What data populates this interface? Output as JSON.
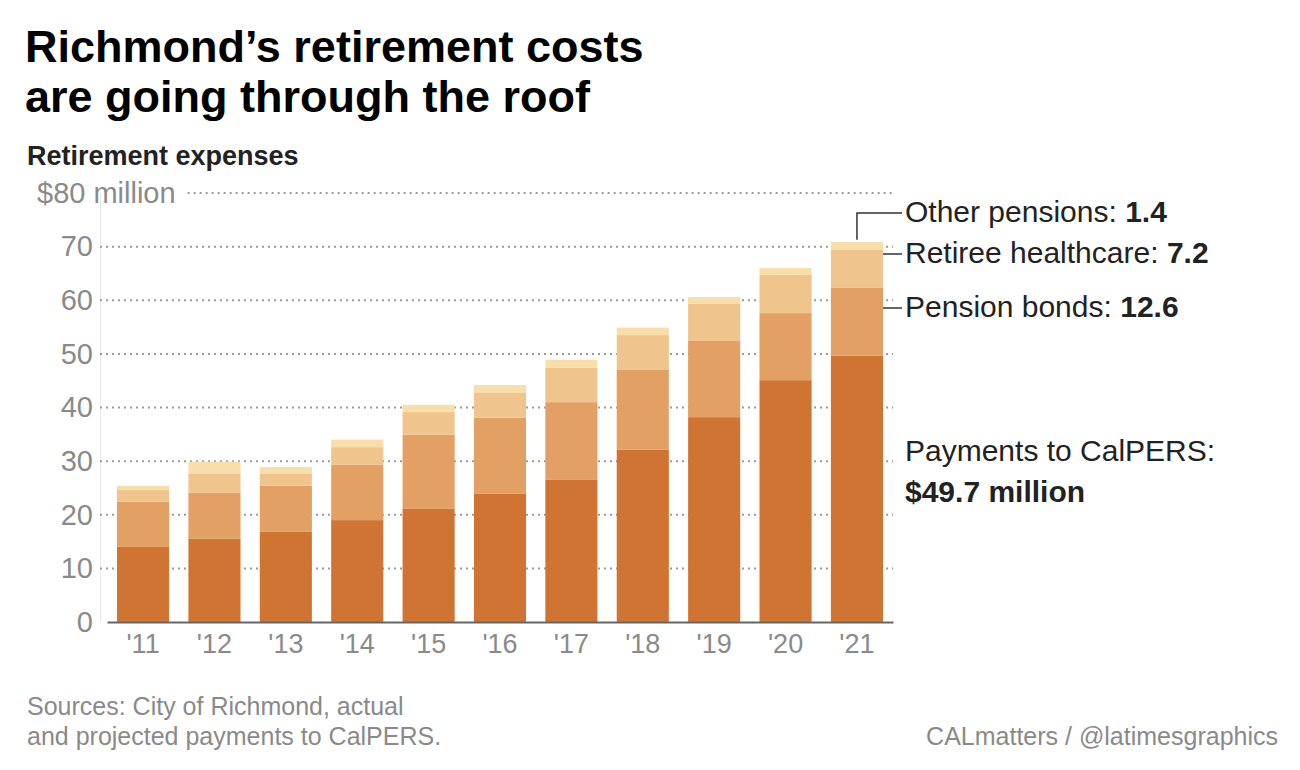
{
  "chart_data": {
    "type": "bar",
    "stacked": true,
    "grid": true,
    "title": [
      "Richmond’s retirement costs",
      "are going through the roof"
    ],
    "subtitle": "Retirement expenses",
    "source": [
      "Sources: City of Richmond, actual",
      "and projected payments to CalPERS."
    ],
    "credit": "CALmatters / @latimesgraphics",
    "categories": [
      "'11",
      "'12",
      "'13",
      "'14",
      "'15",
      "'16",
      "'17",
      "'18",
      "'19",
      "'20",
      "'21"
    ],
    "series": [
      {
        "name": "Payments to CalPERS:",
        "color": "#d07434",
        "values": [
          14.0,
          15.5,
          16.8,
          19.0,
          21.1,
          23.9,
          26.5,
          32.1,
          38.2,
          45.1,
          49.7
        ],
        "value_labels": [
          null,
          null,
          null,
          null,
          null,
          null,
          null,
          null,
          null,
          null,
          "$49.7 million"
        ]
      },
      {
        "name": "Pension bonds:",
        "color": "#e3a065",
        "values": [
          8.4,
          8.6,
          8.6,
          10.3,
          13.8,
          14.2,
          14.5,
          14.9,
          14.2,
          12.5,
          12.6
        ]
      },
      {
        "name": "Retiree healthcare:",
        "color": "#efc48d",
        "values": [
          2.2,
          3.5,
          2.2,
          3.3,
          4.3,
          4.6,
          6.4,
          6.5,
          6.9,
          7.1,
          7.2
        ]
      },
      {
        "name": "Other pensions:",
        "color": "#f8deab",
        "values": [
          0.8,
          2.3,
          1.3,
          1.4,
          1.3,
          1.5,
          1.5,
          1.4,
          1.3,
          1.3,
          1.4
        ]
      }
    ],
    "ylim": [
      0,
      80
    ],
    "yticks": [
      0,
      10,
      20,
      30,
      40,
      50,
      60,
      70,
      {
        "value": 80,
        "label": "$80 million"
      }
    ]
  }
}
